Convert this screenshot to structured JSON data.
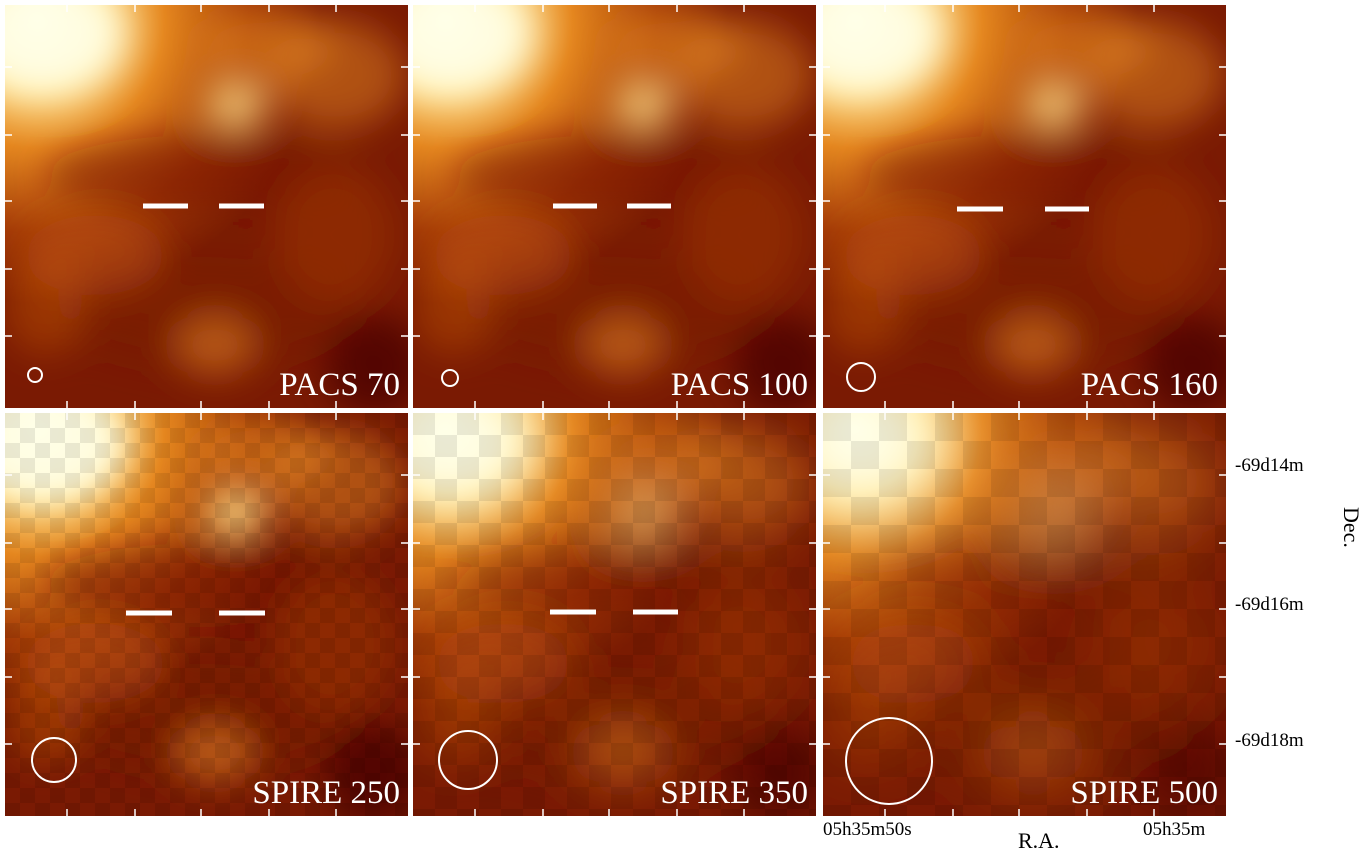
{
  "panels": [
    {
      "label": "PACS 70",
      "row": 0,
      "col": 0,
      "resolution": "fine"
    },
    {
      "label": "PACS 100",
      "row": 0,
      "col": 1,
      "resolution": "fine"
    },
    {
      "label": "PACS 160",
      "row": 0,
      "col": 2,
      "resolution": "fine"
    },
    {
      "label": "SPIRE 250",
      "row": 1,
      "col": 0,
      "resolution": "medium"
    },
    {
      "label": "SPIRE 350",
      "row": 1,
      "col": 1,
      "resolution": "coarse"
    },
    {
      "label": "SPIRE 500",
      "row": 1,
      "col": 2,
      "resolution": "coarsest"
    }
  ],
  "axes": {
    "dec_label": "Dec.",
    "ra_label": "R.A.",
    "dec_ticks": [
      "-69d14m",
      "-69d16m",
      "-69d18m"
    ],
    "ra_ticks": [
      "05h35m50s",
      "05h35m"
    ]
  },
  "colors": {
    "colormap": [
      "#4a0600",
      "#7a1a03",
      "#a33a06",
      "#c75c10",
      "#e5871f",
      "#f8b646",
      "#ffe08a",
      "#ffffe8"
    ],
    "overlay": "#ffffff"
  }
}
